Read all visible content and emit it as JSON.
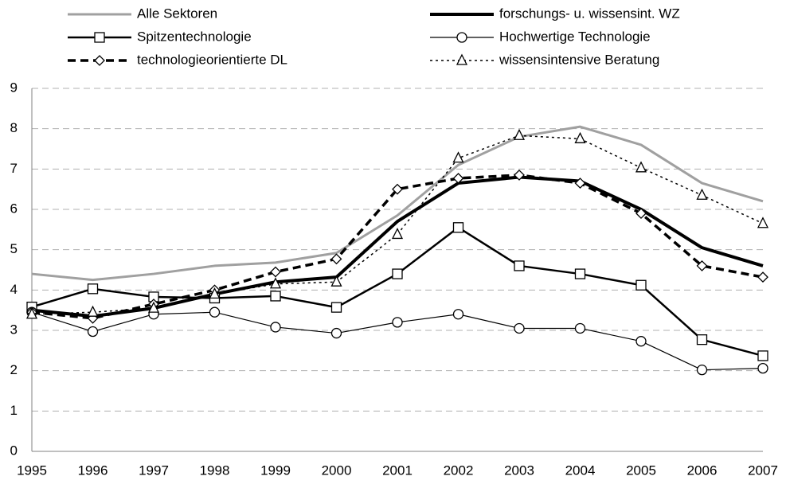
{
  "chart_data": {
    "type": "line",
    "categories": [
      "1995",
      "1996",
      "1997",
      "1998",
      "1999",
      "2000",
      "2001",
      "2002",
      "2003",
      "2004",
      "2005",
      "2006",
      "2007"
    ],
    "ylim": [
      0,
      9
    ],
    "yticks": [
      0,
      1,
      2,
      3,
      4,
      5,
      6,
      7,
      8,
      9
    ],
    "grid": true,
    "legend": "top",
    "series": [
      {
        "name": "Alle Sektoren",
        "color": "#a0a0a0",
        "width": 3,
        "dash": "solid",
        "marker": "none",
        "values": [
          4.4,
          4.25,
          4.4,
          4.6,
          4.68,
          4.92,
          5.85,
          7.1,
          7.8,
          8.05,
          7.6,
          6.65,
          6.2
        ]
      },
      {
        "name": "forschungs- u. wissensint. WZ",
        "color": "#000000",
        "width": 4,
        "dash": "solid",
        "marker": "none",
        "values": [
          3.5,
          3.35,
          3.55,
          3.9,
          4.2,
          4.32,
          5.7,
          6.65,
          6.8,
          6.7,
          6.0,
          5.05,
          4.6
        ]
      },
      {
        "name": "Spitzentechnologie",
        "color": "#000000",
        "width": 2.5,
        "dash": "solid",
        "marker": "square",
        "values": [
          3.58,
          4.03,
          3.83,
          3.8,
          3.85,
          3.57,
          4.4,
          5.55,
          4.6,
          4.4,
          4.12,
          2.77,
          2.37
        ]
      },
      {
        "name": "Hochwertige Technologie",
        "color": "#000000",
        "width": 1.2,
        "dash": "solid",
        "marker": "circle",
        "values": [
          3.45,
          2.97,
          3.4,
          3.45,
          3.08,
          2.93,
          3.2,
          3.4,
          3.05,
          3.05,
          2.73,
          2.02,
          2.06
        ]
      },
      {
        "name": "technologieorientierte DL",
        "color": "#000000",
        "width": 3.5,
        "dash": "dashed",
        "marker": "diamond",
        "values": [
          3.45,
          3.3,
          3.65,
          4.0,
          4.45,
          4.77,
          6.5,
          6.77,
          6.85,
          6.65,
          5.9,
          4.6,
          4.32
        ]
      },
      {
        "name": "wissensintensive Beratung",
        "color": "#000000",
        "width": 1.5,
        "dash": "dotted",
        "marker": "triangle",
        "values": [
          3.4,
          3.45,
          3.55,
          3.9,
          4.15,
          4.2,
          5.38,
          7.27,
          7.83,
          7.75,
          7.03,
          6.35,
          5.65
        ]
      }
    ]
  }
}
